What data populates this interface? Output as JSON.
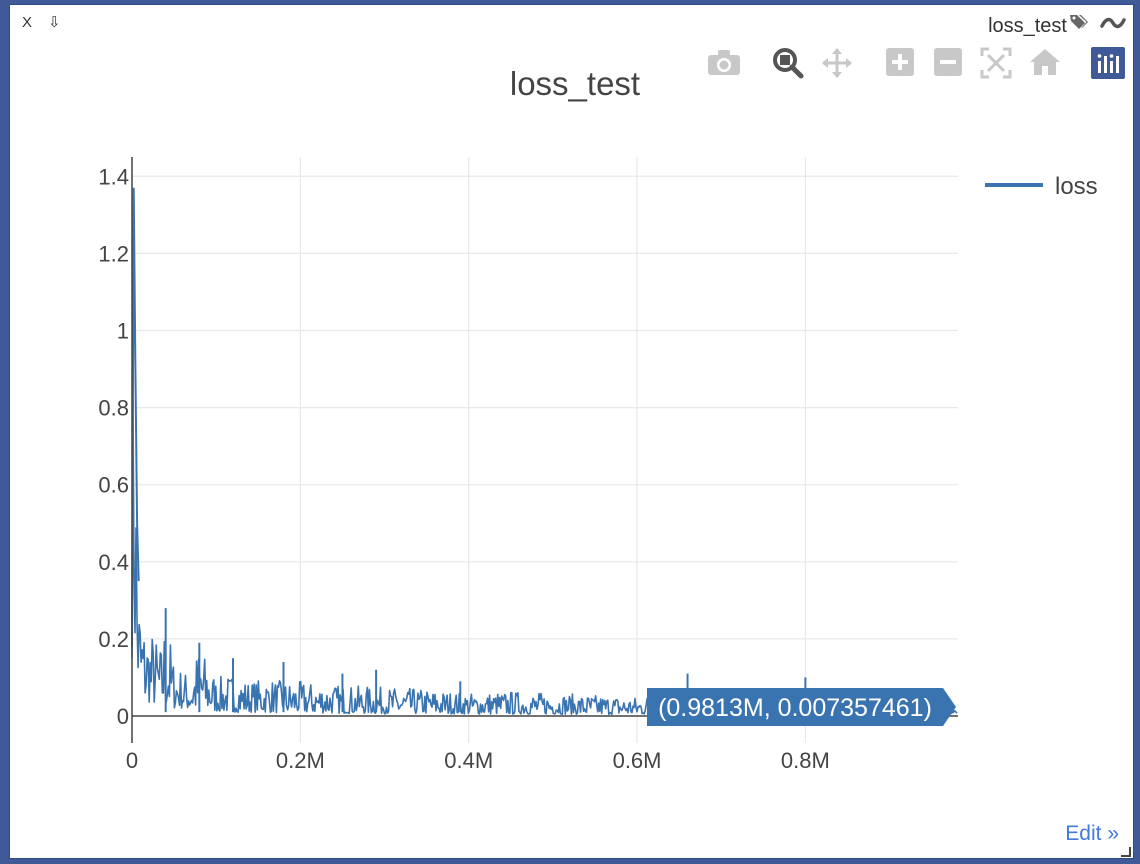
{
  "pane": {
    "close_label": "X",
    "download_label": "⇩",
    "title": "loss_test",
    "edit_label": "Edit »"
  },
  "modebar": [
    "camera-icon",
    "zoom-icon",
    "pan-icon",
    "zoom-in-icon",
    "zoom-out-icon",
    "autoscale-icon",
    "reset-axes-icon",
    "plotly-logo-icon"
  ],
  "tooltip": {
    "text": "(0.9813M, 0.007357461)"
  },
  "colors": {
    "series": "#3a74b0",
    "background": "#3f5a96",
    "active_tool": "#555555",
    "inactive_tool": "#c8c8c8",
    "logo": "#3f5a96"
  },
  "chart_data": {
    "type": "line",
    "title": "loss_test",
    "xlabel": "",
    "ylabel": "",
    "xlim": [
      0,
      981300
    ],
    "ylim": [
      -0.07,
      1.45
    ],
    "grid": true,
    "legend_position": "top-right",
    "x_ticks": [
      {
        "value": 0,
        "label": "0"
      },
      {
        "value": 200000,
        "label": "0.2M"
      },
      {
        "value": 400000,
        "label": "0.4M"
      },
      {
        "value": 600000,
        "label": "0.6M"
      },
      {
        "value": 800000,
        "label": "0.8M"
      }
    ],
    "y_ticks": [
      {
        "value": 0,
        "label": "0"
      },
      {
        "value": 0.2,
        "label": "0.2"
      },
      {
        "value": 0.4,
        "label": "0.4"
      },
      {
        "value": 0.6,
        "label": "0.6"
      },
      {
        "value": 0.8,
        "label": "0.8"
      },
      {
        "value": 1.0,
        "label": "1"
      },
      {
        "value": 1.2,
        "label": "1.2"
      },
      {
        "value": 1.4,
        "label": "1.4"
      }
    ],
    "series": [
      {
        "name": "loss",
        "x": [
          0,
          2000,
          4000,
          6000,
          8000,
          10000,
          15000,
          20000,
          25000,
          30000,
          35000,
          40000,
          50000,
          60000,
          70000,
          80000,
          100000,
          120000,
          140000,
          160000,
          180000,
          200000,
          250000,
          300000,
          350000,
          400000,
          450000,
          500000,
          550000,
          600000,
          650000,
          700000,
          750000,
          800000,
          850000,
          900000,
          950000,
          981300
        ],
        "y_high": [
          0.18,
          1.37,
          0.9,
          0.5,
          0.35,
          0.3,
          0.24,
          0.23,
          0.22,
          0.2,
          0.18,
          0.28,
          0.14,
          0.12,
          0.11,
          0.19,
          0.1,
          0.11,
          0.09,
          0.1,
          0.09,
          0.09,
          0.08,
          0.075,
          0.07,
          0.06,
          0.065,
          0.06,
          0.055,
          0.05,
          0.07,
          0.05,
          0.045,
          0.05,
          0.045,
          0.045,
          0.045,
          0.04
        ],
        "y_low": [
          0.15,
          0.25,
          0.12,
          0.08,
          0.06,
          0.05,
          0.04,
          0.035,
          0.03,
          0.03,
          0.025,
          0.025,
          0.02,
          0.02,
          0.015,
          0.015,
          0.012,
          0.01,
          0.01,
          0.01,
          0.008,
          0.008,
          0.007,
          0.006,
          0.006,
          0.005,
          0.005,
          0.005,
          0.004,
          0.004,
          0.004,
          0.004,
          0.004,
          0.004,
          0.003,
          0.003,
          0.003,
          0.007357461
        ],
        "spikes": [
          {
            "x": 40000,
            "y": 0.28
          },
          {
            "x": 80000,
            "y": 0.19
          },
          {
            "x": 120000,
            "y": 0.15
          },
          {
            "x": 180000,
            "y": 0.14
          },
          {
            "x": 250000,
            "y": 0.11
          },
          {
            "x": 290000,
            "y": 0.12
          },
          {
            "x": 390000,
            "y": 0.09
          },
          {
            "x": 660000,
            "y": 0.11
          },
          {
            "x": 800000,
            "y": 0.1
          }
        ]
      }
    ]
  }
}
